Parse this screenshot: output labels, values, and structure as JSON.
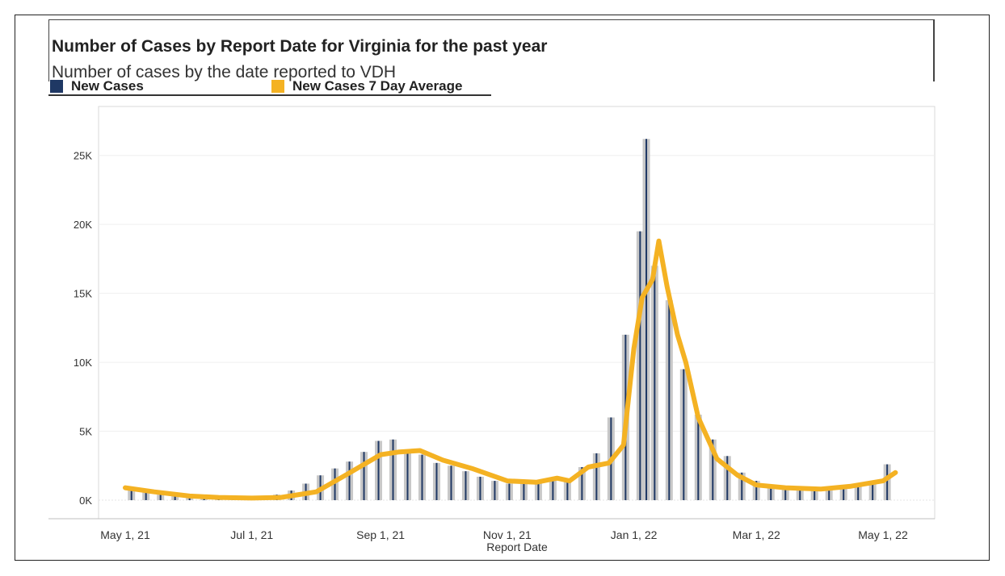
{
  "header": {
    "title": "Number of Cases by Report Date for Virginia for the past year",
    "subtitle": "Number of cases by the date reported to VDH"
  },
  "legend": {
    "items": [
      {
        "label": "New Cases",
        "color": "#1f3864"
      },
      {
        "label": "New Cases 7 Day Average",
        "color": "#f4b223"
      }
    ]
  },
  "chart_data": {
    "type": "bar",
    "title": "Number of Cases by Report Date for Virginia for the past year",
    "subtitle": "Number of cases by the date reported to VDH",
    "xlabel": "Report Date",
    "ylabel": "",
    "ylim": [
      0,
      27500
    ],
    "y_ticks": [
      0,
      5000,
      10000,
      15000,
      20000,
      25000
    ],
    "y_tick_labels": [
      "0K",
      "5K",
      "10K",
      "15K",
      "20K",
      "25K"
    ],
    "x_ticks": [
      "2021-05-01",
      "2021-07-01",
      "2021-09-01",
      "2021-11-01",
      "2022-01-01",
      "2022-03-01",
      "2022-05-01"
    ],
    "x_tick_labels": [
      "May 1, 21",
      "Jul 1, 21",
      "Sep 1, 21",
      "Nov 1, 21",
      "Jan 1, 22",
      "Mar 1, 22",
      "May 1, 22"
    ],
    "grid": true,
    "legend_position": "top-left",
    "colors": {
      "bars_recent": "#1f3864",
      "bars_other": "#c8c8c8",
      "average_line": "#f4b223"
    },
    "series": [
      {
        "name": "New Cases",
        "type": "bar",
        "x": [
          "2021-05-04",
          "2021-05-11",
          "2021-05-18",
          "2021-05-25",
          "2021-06-01",
          "2021-06-08",
          "2021-06-15",
          "2021-06-22",
          "2021-06-29",
          "2021-07-06",
          "2021-07-13",
          "2021-07-20",
          "2021-07-27",
          "2021-08-03",
          "2021-08-10",
          "2021-08-17",
          "2021-08-24",
          "2021-08-31",
          "2021-09-07",
          "2021-09-14",
          "2021-09-21",
          "2021-09-28",
          "2021-10-05",
          "2021-10-12",
          "2021-10-19",
          "2021-10-26",
          "2021-11-02",
          "2021-11-09",
          "2021-11-16",
          "2021-11-23",
          "2021-11-30",
          "2021-12-07",
          "2021-12-14",
          "2021-12-21",
          "2021-12-28",
          "2022-01-04",
          "2022-01-07",
          "2022-01-11",
          "2022-01-18",
          "2022-01-25",
          "2022-02-01",
          "2022-02-08",
          "2022-02-15",
          "2022-02-22",
          "2022-03-01",
          "2022-03-08",
          "2022-03-15",
          "2022-03-22",
          "2022-03-29",
          "2022-04-05",
          "2022-04-12",
          "2022-04-19",
          "2022-04-26",
          "2022-05-03"
        ],
        "values": [
          800,
          550,
          400,
          300,
          200,
          150,
          120,
          150,
          180,
          250,
          400,
          700,
          1200,
          1800,
          2300,
          2800,
          3500,
          4300,
          4400,
          3600,
          3300,
          2700,
          2500,
          2100,
          1700,
          1400,
          1200,
          1200,
          1300,
          1600,
          1400,
          2400,
          3400,
          6000,
          12000,
          19500,
          26200,
          17000,
          14500,
          9500,
          6200,
          4400,
          3200,
          2000,
          1400,
          1100,
          900,
          800,
          700,
          800,
          1000,
          1200,
          1400,
          2600
        ]
      },
      {
        "name": "New Cases 7 Day Average",
        "type": "line",
        "x": [
          "2021-05-01",
          "2021-05-15",
          "2021-06-01",
          "2021-06-15",
          "2021-07-01",
          "2021-07-15",
          "2021-08-01",
          "2021-08-15",
          "2021-09-01",
          "2021-09-10",
          "2021-09-20",
          "2021-10-01",
          "2021-10-15",
          "2021-11-01",
          "2021-11-15",
          "2021-11-25",
          "2021-12-01",
          "2021-12-10",
          "2021-12-20",
          "2021-12-27",
          "2022-01-01",
          "2022-01-05",
          "2022-01-10",
          "2022-01-13",
          "2022-01-17",
          "2022-01-22",
          "2022-01-26",
          "2022-02-01",
          "2022-02-10",
          "2022-02-20",
          "2022-03-01",
          "2022-03-15",
          "2022-04-01",
          "2022-04-15",
          "2022-05-01",
          "2022-05-07"
        ],
        "values": [
          900,
          600,
          300,
          200,
          150,
          200,
          600,
          1800,
          3300,
          3500,
          3600,
          2900,
          2300,
          1400,
          1300,
          1600,
          1400,
          2400,
          2700,
          4000,
          11000,
          14700,
          16000,
          18800,
          15500,
          12000,
          10000,
          6000,
          3000,
          1800,
          1100,
          900,
          800,
          1000,
          1400,
          2000
        ]
      }
    ]
  }
}
